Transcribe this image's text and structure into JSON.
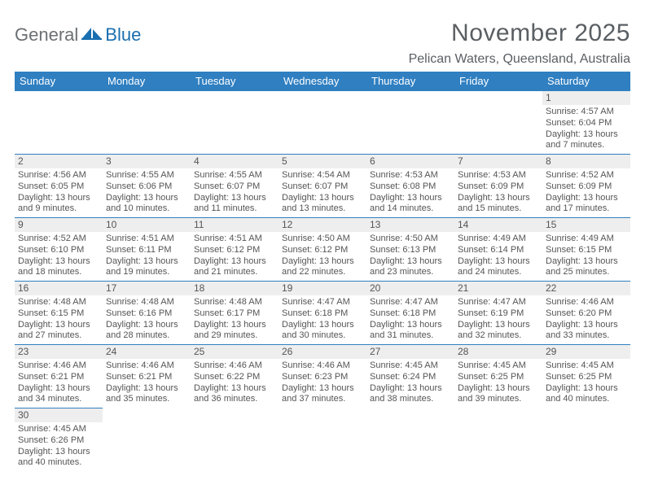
{
  "brand": {
    "part1": "General",
    "part2": "Blue"
  },
  "title": "November 2025",
  "location": "Pelican Waters, Queensland, Australia",
  "columns": [
    "Sunday",
    "Monday",
    "Tuesday",
    "Wednesday",
    "Thursday",
    "Friday",
    "Saturday"
  ],
  "colors": {
    "header_bg": "#2f7fc1",
    "header_text": "#ffffff",
    "daynum_bg": "#eeeeee",
    "cell_border": "#2f7fc1",
    "title_text": "#5a5f63",
    "body_text": "#555555",
    "brand_gray": "#6b7074",
    "brand_blue": "#1a6fb0",
    "background": "#ffffff"
  },
  "fonts": {
    "title_size_pt": 22,
    "location_size_pt": 12,
    "header_size_pt": 10,
    "cell_size_pt": 8,
    "daynum_size_pt": 9
  },
  "first_weekday_index": 6,
  "days": [
    {
      "n": 1,
      "sunrise": "4:57 AM",
      "sunset": "6:04 PM",
      "daylight": "13 hours and 7 minutes."
    },
    {
      "n": 2,
      "sunrise": "4:56 AM",
      "sunset": "6:05 PM",
      "daylight": "13 hours and 9 minutes."
    },
    {
      "n": 3,
      "sunrise": "4:55 AM",
      "sunset": "6:06 PM",
      "daylight": "13 hours and 10 minutes."
    },
    {
      "n": 4,
      "sunrise": "4:55 AM",
      "sunset": "6:07 PM",
      "daylight": "13 hours and 11 minutes."
    },
    {
      "n": 5,
      "sunrise": "4:54 AM",
      "sunset": "6:07 PM",
      "daylight": "13 hours and 13 minutes."
    },
    {
      "n": 6,
      "sunrise": "4:53 AM",
      "sunset": "6:08 PM",
      "daylight": "13 hours and 14 minutes."
    },
    {
      "n": 7,
      "sunrise": "4:53 AM",
      "sunset": "6:09 PM",
      "daylight": "13 hours and 15 minutes."
    },
    {
      "n": 8,
      "sunrise": "4:52 AM",
      "sunset": "6:09 PM",
      "daylight": "13 hours and 17 minutes."
    },
    {
      "n": 9,
      "sunrise": "4:52 AM",
      "sunset": "6:10 PM",
      "daylight": "13 hours and 18 minutes."
    },
    {
      "n": 10,
      "sunrise": "4:51 AM",
      "sunset": "6:11 PM",
      "daylight": "13 hours and 19 minutes."
    },
    {
      "n": 11,
      "sunrise": "4:51 AM",
      "sunset": "6:12 PM",
      "daylight": "13 hours and 21 minutes."
    },
    {
      "n": 12,
      "sunrise": "4:50 AM",
      "sunset": "6:12 PM",
      "daylight": "13 hours and 22 minutes."
    },
    {
      "n": 13,
      "sunrise": "4:50 AM",
      "sunset": "6:13 PM",
      "daylight": "13 hours and 23 minutes."
    },
    {
      "n": 14,
      "sunrise": "4:49 AM",
      "sunset": "6:14 PM",
      "daylight": "13 hours and 24 minutes."
    },
    {
      "n": 15,
      "sunrise": "4:49 AM",
      "sunset": "6:15 PM",
      "daylight": "13 hours and 25 minutes."
    },
    {
      "n": 16,
      "sunrise": "4:48 AM",
      "sunset": "6:15 PM",
      "daylight": "13 hours and 27 minutes."
    },
    {
      "n": 17,
      "sunrise": "4:48 AM",
      "sunset": "6:16 PM",
      "daylight": "13 hours and 28 minutes."
    },
    {
      "n": 18,
      "sunrise": "4:48 AM",
      "sunset": "6:17 PM",
      "daylight": "13 hours and 29 minutes."
    },
    {
      "n": 19,
      "sunrise": "4:47 AM",
      "sunset": "6:18 PM",
      "daylight": "13 hours and 30 minutes."
    },
    {
      "n": 20,
      "sunrise": "4:47 AM",
      "sunset": "6:18 PM",
      "daylight": "13 hours and 31 minutes."
    },
    {
      "n": 21,
      "sunrise": "4:47 AM",
      "sunset": "6:19 PM",
      "daylight": "13 hours and 32 minutes."
    },
    {
      "n": 22,
      "sunrise": "4:46 AM",
      "sunset": "6:20 PM",
      "daylight": "13 hours and 33 minutes."
    },
    {
      "n": 23,
      "sunrise": "4:46 AM",
      "sunset": "6:21 PM",
      "daylight": "13 hours and 34 minutes."
    },
    {
      "n": 24,
      "sunrise": "4:46 AM",
      "sunset": "6:21 PM",
      "daylight": "13 hours and 35 minutes."
    },
    {
      "n": 25,
      "sunrise": "4:46 AM",
      "sunset": "6:22 PM",
      "daylight": "13 hours and 36 minutes."
    },
    {
      "n": 26,
      "sunrise": "4:46 AM",
      "sunset": "6:23 PM",
      "daylight": "13 hours and 37 minutes."
    },
    {
      "n": 27,
      "sunrise": "4:45 AM",
      "sunset": "6:24 PM",
      "daylight": "13 hours and 38 minutes."
    },
    {
      "n": 28,
      "sunrise": "4:45 AM",
      "sunset": "6:25 PM",
      "daylight": "13 hours and 39 minutes."
    },
    {
      "n": 29,
      "sunrise": "4:45 AM",
      "sunset": "6:25 PM",
      "daylight": "13 hours and 40 minutes."
    },
    {
      "n": 30,
      "sunrise": "4:45 AM",
      "sunset": "6:26 PM",
      "daylight": "13 hours and 40 minutes."
    }
  ],
  "labels": {
    "sunrise_prefix": "Sunrise: ",
    "sunset_prefix": "Sunset: ",
    "daylight_prefix": "Daylight: "
  }
}
